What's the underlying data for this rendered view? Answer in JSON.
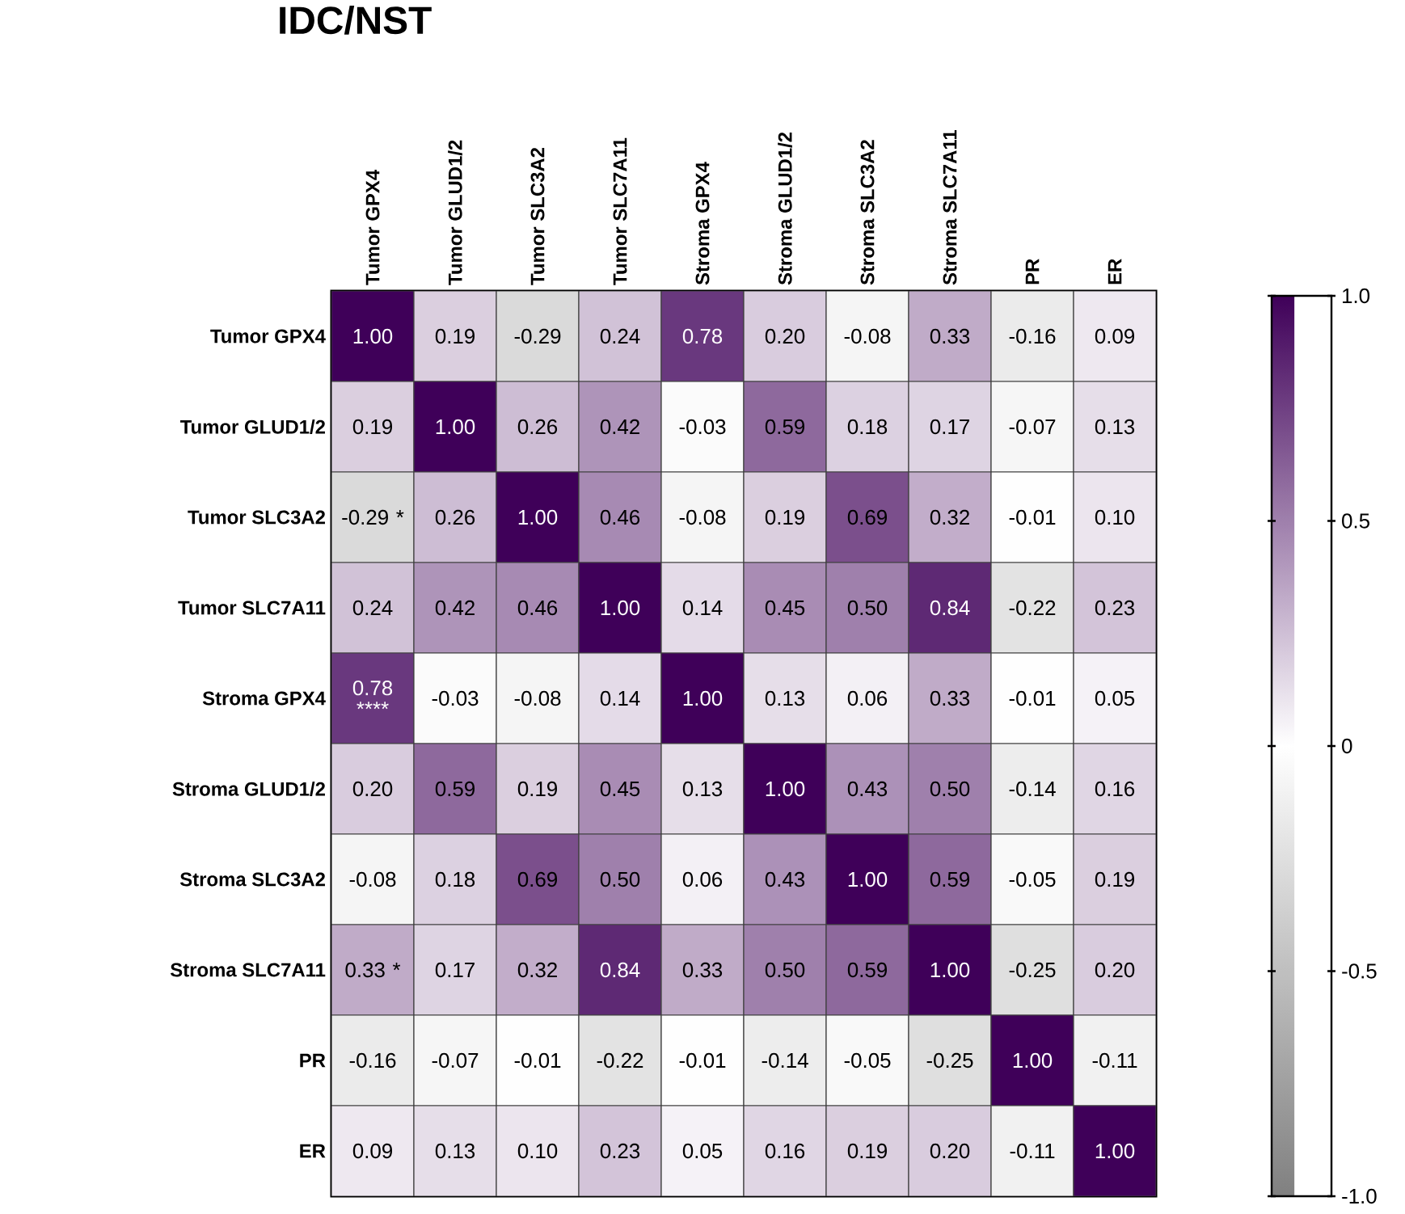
{
  "chart_data": {
    "type": "heatmap",
    "title": "IDC/NST",
    "categories": [
      "Tumor GPX4",
      "Tumor GLUD1/2",
      "Tumor SLC3A2",
      "Tumor SLC7A11",
      "Stroma GPX4",
      "Stroma GLUD1/2",
      "Stroma SLC3A2",
      "Stroma SLC7A11",
      "PR",
      "ER"
    ],
    "y_categories": [
      "Tumor GPX4",
      "Tumor GLUD1/2",
      "Tumor SLC3A2",
      "Tumor SLC7A11",
      "Stroma GPX4",
      "Stroma GLUD1/2",
      "Stroma SLC3A2",
      "Stroma SLC7A11",
      "PR",
      "ER"
    ],
    "cells": [
      [
        1.0,
        0.19,
        -0.29,
        0.24,
        0.78,
        0.2,
        -0.08,
        0.33,
        -0.16,
        0.09
      ],
      [
        0.19,
        1.0,
        0.26,
        0.42,
        -0.03,
        0.59,
        0.18,
        0.17,
        -0.07,
        0.13
      ],
      [
        -0.29,
        0.26,
        1.0,
        0.46,
        -0.08,
        0.19,
        0.69,
        0.32,
        -0.01,
        0.1
      ],
      [
        0.24,
        0.42,
        0.46,
        1.0,
        0.14,
        0.45,
        0.5,
        0.84,
        -0.22,
        0.23
      ],
      [
        0.78,
        -0.03,
        -0.08,
        0.14,
        1.0,
        0.13,
        0.06,
        0.33,
        -0.01,
        0.05
      ],
      [
        0.2,
        0.59,
        0.19,
        0.45,
        0.13,
        1.0,
        0.43,
        0.5,
        -0.14,
        0.16
      ],
      [
        -0.08,
        0.18,
        0.69,
        0.5,
        0.06,
        0.43,
        1.0,
        0.59,
        -0.05,
        0.19
      ],
      [
        0.33,
        0.17,
        0.32,
        0.84,
        0.33,
        0.5,
        0.59,
        1.0,
        -0.25,
        0.2
      ],
      [
        -0.16,
        -0.07,
        -0.01,
        -0.22,
        -0.01,
        -0.14,
        -0.05,
        -0.25,
        1.0,
        -0.11
      ],
      [
        0.09,
        0.13,
        0.1,
        0.23,
        0.05,
        0.16,
        0.19,
        0.2,
        -0.11,
        1.0
      ]
    ],
    "cell_labels": [
      [
        "1.00",
        "0.19",
        "-0.29",
        "0.24",
        "0.78",
        "0.20",
        "-0.08",
        "0.33",
        "-0.16",
        "0.09"
      ],
      [
        "0.19",
        "1.00",
        "0.26",
        "0.42",
        "-0.03",
        "0.59",
        "0.18",
        "0.17",
        "-0.07",
        "0.13"
      ],
      [
        "-0.29 *",
        "0.26",
        "1.00",
        "0.46",
        "-0.08",
        "0.19",
        "0.69",
        "0.32",
        "-0.01",
        "0.10"
      ],
      [
        "0.24",
        "0.42",
        "0.46",
        "1.00",
        "0.14",
        "0.45",
        "0.50",
        "0.84",
        "-0.22",
        "0.23"
      ],
      [
        "0.78 ****",
        "-0.03",
        "-0.08",
        "0.14",
        "1.00",
        "0.13",
        "0.06",
        "0.33",
        "-0.01",
        "0.05"
      ],
      [
        "0.20",
        "0.59",
        "0.19",
        "0.45",
        "0.13",
        "1.00",
        "0.43",
        "0.50",
        "-0.14",
        "0.16"
      ],
      [
        "-0.08",
        "0.18",
        "0.69",
        "0.50",
        "0.06",
        "0.43",
        "1.00",
        "0.59",
        "-0.05",
        "0.19"
      ],
      [
        "0.33 *",
        "0.17",
        "0.32",
        "0.84",
        "0.33",
        "0.50",
        "0.59",
        "1.00",
        "-0.25",
        "0.20"
      ],
      [
        "-0.16",
        "-0.07",
        "-0.01",
        "-0.22",
        "-0.01",
        "-0.14",
        "-0.05",
        "-0.25",
        "1.00",
        "-0.11"
      ],
      [
        "0.09",
        "0.13",
        "0.10",
        "0.23",
        "0.05",
        "0.16",
        "0.19",
        "0.20",
        "-0.11",
        "1.00"
      ]
    ],
    "clim": [
      -1.0,
      1.0
    ],
    "cticks": [
      {
        "value": -1.0,
        "label": "-1.0"
      },
      {
        "value": -0.5,
        "label": "-0.5"
      },
      0,
      {
        "value": 0.5,
        "label": "0.5"
      },
      {
        "value": 1.0,
        "label": "1.0"
      }
    ]
  }
}
